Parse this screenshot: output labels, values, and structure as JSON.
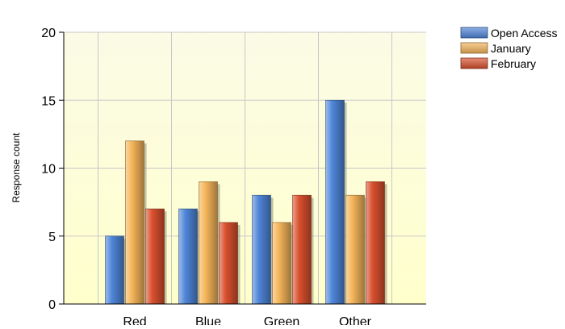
{
  "chart_data": {
    "type": "bar",
    "title": "",
    "xlabel": "",
    "ylabel": "Response count",
    "categories": [
      "Red",
      "Blue",
      "Green",
      "Other"
    ],
    "ylim": [
      0,
      20
    ],
    "yticks": [
      0,
      5,
      10,
      15,
      20
    ],
    "grid": true,
    "legend_position": "top-right",
    "series": [
      {
        "name": "Open Access",
        "values": [
          5,
          7,
          8,
          15
        ],
        "color": "#4f86d9"
      },
      {
        "name": "January",
        "values": [
          12,
          9,
          6,
          8
        ],
        "color": "#f5b55a"
      },
      {
        "name": "February",
        "values": [
          7,
          6,
          8,
          9
        ],
        "color": "#d9502e"
      }
    ],
    "plot_background": [
      "#fbfbe6",
      "#ffffcc"
    ]
  }
}
